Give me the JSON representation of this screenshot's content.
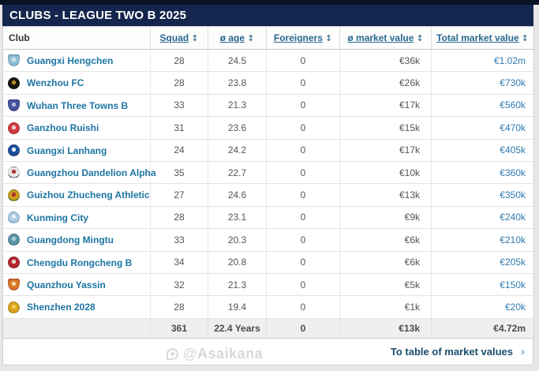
{
  "header": {
    "title": "CLUBS - LEAGUE TWO B 2025"
  },
  "table": {
    "columns": [
      {
        "label": "Club",
        "sortable": false
      },
      {
        "label": "Squad",
        "sortable": true
      },
      {
        "label": "ø age",
        "sortable": true
      },
      {
        "label": "Foreigners",
        "sortable": true
      },
      {
        "label": "ø market value",
        "sortable": true
      },
      {
        "label": "Total market value",
        "sortable": true
      }
    ],
    "sort_icon": "↕",
    "rows": [
      {
        "club": "Guangxi Hengchen",
        "squad": "28",
        "avg_age": "24.5",
        "foreigners": "0",
        "avg_market_value": "€36k",
        "total_market_value": "€1.02m",
        "crest": {
          "shape": "shield",
          "colors": [
            "#8fc0d6",
            "#cfe5ee",
            "#4f95b5"
          ]
        }
      },
      {
        "club": "Wenzhou FC",
        "squad": "28",
        "avg_age": "23.8",
        "foreigners": "0",
        "avg_market_value": "€26k",
        "total_market_value": "€730k",
        "crest": {
          "shape": "circle",
          "colors": [
            "#1a150d",
            "#b98f2c",
            "#0d0a06"
          ]
        }
      },
      {
        "club": "Wuhan Three Towns B",
        "squad": "33",
        "avg_age": "21.3",
        "foreigners": "0",
        "avg_market_value": "€17k",
        "total_market_value": "€560k",
        "crest": {
          "shape": "shield",
          "colors": [
            "#45529e",
            "#aeb6da",
            "#2e3b82"
          ]
        }
      },
      {
        "club": "Ganzhou Ruishi",
        "squad": "31",
        "avg_age": "23.6",
        "foreigners": "0",
        "avg_market_value": "€15k",
        "total_market_value": "€470k",
        "crest": {
          "shape": "circle",
          "colors": [
            "#cf3a3f",
            "#efc9c9",
            "#b02a30"
          ]
        }
      },
      {
        "club": "Guangxi Lanhang",
        "squad": "24",
        "avg_age": "24.2",
        "foreigners": "0",
        "avg_market_value": "€17k",
        "total_market_value": "€405k",
        "crest": {
          "shape": "circle",
          "colors": [
            "#1e4f9c",
            "#e8eef8",
            "#143a77"
          ]
        }
      },
      {
        "club": "Guangzhou Dandelion Alpha",
        "squad": "35",
        "avg_age": "22.7",
        "foreigners": "0",
        "avg_market_value": "€10k",
        "total_market_value": "€360k",
        "crest": {
          "shape": "circle",
          "colors": [
            "#ece8e8",
            "#b23a3f",
            "#31406b"
          ]
        }
      },
      {
        "club": "Guizhou Zhucheng Athletic",
        "squad": "27",
        "avg_age": "24.6",
        "foreigners": "0",
        "avg_market_value": "€13k",
        "total_market_value": "€350k",
        "crest": {
          "shape": "circle",
          "colors": [
            "#c9a21d",
            "#b03030",
            "#2a5c2f"
          ]
        }
      },
      {
        "club": "Kunming City",
        "squad": "28",
        "avg_age": "23.1",
        "foreigners": "0",
        "avg_market_value": "€9k",
        "total_market_value": "€240k",
        "crest": {
          "shape": "blob",
          "colors": [
            "#a9cbe3",
            "#e7f1f8",
            "#7fa8c8"
          ]
        }
      },
      {
        "club": "Guangdong Mingtu",
        "squad": "33",
        "avg_age": "20.3",
        "foreigners": "0",
        "avg_market_value": "€6k",
        "total_market_value": "€210k",
        "crest": {
          "shape": "circle",
          "colors": [
            "#5d93a3",
            "#a9ccd5",
            "#3e6f80"
          ]
        }
      },
      {
        "club": "Chengdu Rongcheng B",
        "squad": "34",
        "avg_age": "20.8",
        "foreigners": "0",
        "avg_market_value": "€6k",
        "total_market_value": "€205k",
        "crest": {
          "shape": "circle",
          "colors": [
            "#b5262c",
            "#e7d2d2",
            "#8f1d22"
          ]
        }
      },
      {
        "club": "Quanzhou Yassin",
        "squad": "32",
        "avg_age": "21.3",
        "foreigners": "0",
        "avg_market_value": "€5k",
        "total_market_value": "€150k",
        "crest": {
          "shape": "shield",
          "colors": [
            "#d8782b",
            "#f0d9a8",
            "#b5342e"
          ]
        }
      },
      {
        "club": "Shenzhen 2028",
        "squad": "28",
        "avg_age": "19.4",
        "foreigners": "0",
        "avg_market_value": "€1k",
        "total_market_value": "€20k",
        "crest": {
          "shape": "blob",
          "colors": [
            "#d9a51e",
            "#f0c75a",
            "#b9831a"
          ]
        }
      }
    ],
    "totals": {
      "squad": "361",
      "avg_age": "22.4 Years",
      "foreigners": "0",
      "avg_market_value": "€13k",
      "total_market_value": "€4.72m"
    }
  },
  "footer_link": {
    "label": "To table of market values",
    "chevron": "›"
  },
  "watermark": {
    "text": "@Asaikana"
  },
  "colors": {
    "title_bar": "#14264d",
    "top_strip": "#0a1228",
    "header_link": "#28678f",
    "club_link": "#1d75a3",
    "total_link": "#2f7ab0",
    "footer_link": "#1a4d6d",
    "totals_bg": "#f0efee"
  }
}
